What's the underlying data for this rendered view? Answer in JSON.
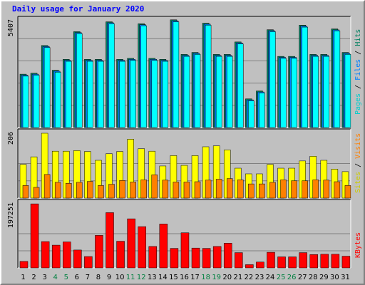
{
  "chart_data": {
    "type": "bar",
    "title": "Daily usage for January 2020",
    "colors": {
      "background": "#c0c0c0",
      "title": "#0000ff",
      "hits": "#00cccc",
      "hits_dark": "#008060",
      "files": "#0080ff",
      "pages": "#00ffff",
      "visits": "#ff8000",
      "sites": "#ffff00",
      "kbytes": "#ff0000",
      "weekend_day": "#008040",
      "weekday_day": "#000000",
      "gridline": "#808080"
    },
    "days": [
      "1",
      "2",
      "3",
      "4",
      "5",
      "6",
      "7",
      "8",
      "9",
      "10",
      "11",
      "12",
      "13",
      "14",
      "15",
      "16",
      "17",
      "18",
      "19",
      "20",
      "21",
      "22",
      "23",
      "24",
      "25",
      "26",
      "27",
      "28",
      "29",
      "30",
      "31"
    ],
    "weekend_days": [
      4,
      5,
      11,
      12,
      18,
      19,
      25,
      26
    ],
    "panels": [
      {
        "name": "hits-files-pages",
        "ymax": 5407,
        "ymax_label": "5407",
        "side_labels": [
          {
            "text": "Pages",
            "color": "#00cccc"
          },
          {
            "text": " / ",
            "color": "#000000"
          },
          {
            "text": "Files",
            "color": "#0080ff"
          },
          {
            "text": " / ",
            "color": "#000000"
          },
          {
            "text": "Hits",
            "color": "#008060"
          }
        ],
        "series": [
          {
            "key": "hits",
            "values": [
              2700,
              2750,
              4150,
              2900,
              3450,
              4850,
              3450,
              3450,
              5350,
              3450,
              3500,
              5250,
              3500,
              3450,
              5450,
              3700,
              3800,
              5280,
              3700,
              3700,
              4330,
              1450,
              1850,
              4950,
              3600,
              3600,
              5180,
              3700,
              3700,
              4990,
              3800
            ]
          },
          {
            "key": "files",
            "values": [
              2650,
              2700,
              4100,
              2850,
              3400,
              4800,
              3400,
              3400,
              5300,
              3400,
              3450,
              5200,
              3450,
              3400,
              5400,
              3650,
              3750,
              5230,
              3650,
              3650,
              4280,
              1400,
              1800,
              4900,
              3550,
              3550,
              5130,
              3650,
              3650,
              4940,
              3750
            ]
          },
          {
            "key": "pages",
            "values": [
              2600,
              2650,
              4050,
              2800,
              3350,
              4750,
              3350,
              3350,
              5250,
              3350,
              3400,
              5150,
              3400,
              3350,
              5350,
              3600,
              3700,
              5180,
              3600,
              3600,
              4230,
              1350,
              1750,
              4850,
              3500,
              3500,
              5080,
              3600,
              3600,
              4890,
              3700
            ]
          }
        ]
      },
      {
        "name": "visits-sites",
        "ymax": 206,
        "ymax_label": "206",
        "side_labels": [
          {
            "text": "Sites",
            "color": "#cccc00"
          },
          {
            "text": " / ",
            "color": "#000000"
          },
          {
            "text": "Visits",
            "color": "#ff8000"
          }
        ],
        "series": [
          {
            "key": "sites",
            "values": [
              107,
              131,
              206,
              149,
              149,
              151,
              148,
              120,
              141,
              148,
              187,
              157,
              149,
              102,
              135,
              104,
              135,
              163,
              166,
              153,
              95,
              77,
              77,
              107,
              95,
              95,
              118,
              133,
              120,
              92,
              84
            ]
          },
          {
            "key": "visits",
            "values": [
              40,
              34,
              75,
              50,
              47,
              50,
              53,
              40,
              44,
              56,
              51,
              58,
              74,
              57,
              51,
              51,
              52,
              57,
              60,
              62,
              58,
              45,
              45,
              50,
              58,
              55,
              55,
              58,
              57,
              52,
              40
            ]
          }
        ]
      },
      {
        "name": "kbytes",
        "ymax": 197251,
        "ymax_label": "197251",
        "side_labels": [
          {
            "text": "KBytes",
            "color": "#ff0000"
          }
        ],
        "series": [
          {
            "key": "kbytes",
            "values": [
              20000,
              197000,
              81000,
              70000,
              80000,
              55000,
              35000,
              100000,
              170000,
              82000,
              151000,
              127000,
              66000,
              135000,
              60000,
              108000,
              61000,
              60000,
              66000,
              76000,
              47000,
              10000,
              18000,
              48000,
              34000,
              34000,
              47000,
              41000,
              42000,
              42000,
              36000
            ]
          }
        ]
      }
    ]
  }
}
